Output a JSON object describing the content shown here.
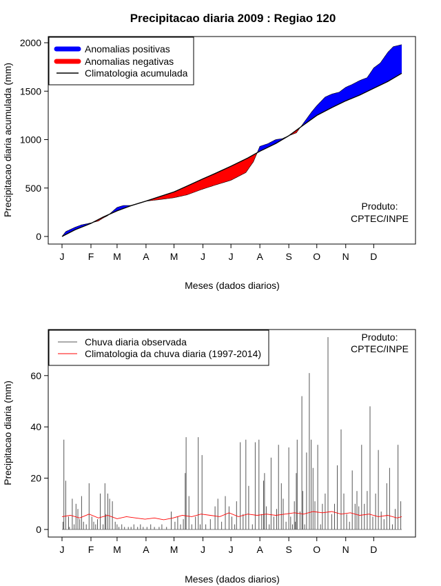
{
  "colors": {
    "positive": "#0000FF",
    "negative": "#FF0000",
    "climatology": "#000000",
    "observed": "#555555",
    "clim_daily": "#FF0000"
  },
  "chart_data": [
    {
      "type": "area",
      "title": "Precipitacao diaria 2009 : Regiao 120",
      "xlabel": "Meses (dados diarios)",
      "ylabel": "Precipitacao diaria acumulada (mm)",
      "ylim": [
        0,
        2000
      ],
      "yticks": [
        0,
        500,
        1000,
        1500,
        2000
      ],
      "xlim": [
        1,
        365
      ],
      "month_labels": [
        "J",
        "F",
        "M",
        "A",
        "M",
        "J",
        "J",
        "A",
        "S",
        "O",
        "N",
        "D"
      ],
      "month_days": [
        1,
        32,
        60,
        91,
        121,
        152,
        182,
        213,
        244,
        274,
        305,
        335
      ],
      "legend": [
        "Anomalias positivas",
        "Anomalias negativas",
        "Climatologia acumulada"
      ],
      "legend_position": "top-left",
      "note": [
        "Produto:",
        "CPTEC/INPE"
      ],
      "series": [
        {
          "name": "Climatologia acumulada",
          "x": [
            1,
            15,
            32,
            45,
            60,
            75,
            91,
            105,
            121,
            135,
            152,
            165,
            182,
            200,
            213,
            230,
            244,
            259,
            274,
            290,
            305,
            320,
            335,
            350,
            365
          ],
          "values": [
            0,
            70,
            135,
            200,
            265,
            318,
            365,
            410,
            460,
            520,
            595,
            650,
            725,
            810,
            880,
            960,
            1040,
            1145,
            1250,
            1330,
            1400,
            1460,
            1530,
            1600,
            1685
          ]
        },
        {
          "name": "Observada acumulada",
          "x": [
            1,
            5,
            15,
            22,
            32,
            40,
            45,
            50,
            60,
            67,
            75,
            85,
            91,
            105,
            121,
            135,
            152,
            165,
            182,
            198,
            206,
            213,
            222,
            230,
            237,
            244,
            252,
            259,
            268,
            274,
            283,
            290,
            298,
            305,
            312,
            320,
            328,
            335,
            342,
            350,
            356,
            365
          ],
          "values": [
            0,
            50,
            95,
            120,
            140,
            160,
            190,
            215,
            300,
            320,
            320,
            350,
            365,
            380,
            400,
            430,
            490,
            530,
            580,
            660,
            770,
            930,
            960,
            1000,
            1010,
            1040,
            1070,
            1160,
            1280,
            1350,
            1440,
            1470,
            1490,
            1540,
            1570,
            1610,
            1640,
            1740,
            1790,
            1900,
            1960,
            1980
          ]
        }
      ]
    },
    {
      "type": "line",
      "xlabel": "Meses (dados diarios)",
      "ylabel": "Precipitacao diaria (mm)",
      "ylim": [
        0,
        75
      ],
      "yticks": [
        0,
        20,
        40,
        60
      ],
      "xlim": [
        1,
        365
      ],
      "month_labels": [
        "J",
        "F",
        "M",
        "A",
        "M",
        "J",
        "J",
        "A",
        "S",
        "O",
        "N",
        "D"
      ],
      "month_days": [
        1,
        32,
        60,
        91,
        121,
        152,
        182,
        213,
        244,
        274,
        305,
        335
      ],
      "legend": [
        "Chuva diaria observada",
        "Climatologia da chuva diaria (1997-2014)"
      ],
      "legend_position": "top-left",
      "note": [
        "Produto:",
        "CPTEC/INPE"
      ],
      "series": [
        {
          "name": "Chuva diaria observada",
          "x": [
            2,
            3,
            5,
            8,
            9,
            12,
            14,
            16,
            18,
            20,
            22,
            24,
            27,
            30,
            33,
            35,
            37,
            39,
            42,
            45,
            47,
            48,
            50,
            52,
            55,
            58,
            60,
            62,
            65,
            68,
            72,
            75,
            78,
            82,
            85,
            88,
            92,
            96,
            100,
            105,
            108,
            113,
            118,
            122,
            125,
            128,
            131,
            133,
            134,
            137,
            140,
            144,
            147,
            149,
            151,
            155,
            160,
            165,
            168,
            172,
            176,
            180,
            183,
            186,
            188,
            192,
            195,
            198,
            201,
            205,
            208,
            212,
            215,
            217,
            218,
            220,
            223,
            225,
            228,
            231,
            233,
            236,
            238,
            241,
            244,
            246,
            248,
            250,
            251,
            252,
            253,
            256,
            258,
            259,
            261,
            263,
            266,
            268,
            270,
            272,
            275,
            278,
            280,
            283,
            286,
            290,
            293,
            296,
            300,
            303,
            306,
            309,
            312,
            315,
            317,
            319,
            322,
            325,
            328,
            331,
            334,
            337,
            340,
            343,
            346,
            349,
            352,
            355,
            358,
            361,
            364
          ],
          "values": [
            3,
            35,
            19,
            5,
            1,
            12,
            2,
            10,
            8,
            4,
            13,
            3,
            2,
            18,
            5,
            3,
            2,
            4,
            14,
            2,
            18,
            6,
            14,
            12,
            11,
            3,
            2,
            1,
            2,
            1,
            1,
            1,
            2,
            1,
            2,
            1,
            1,
            2,
            1,
            1,
            2,
            1,
            7,
            3,
            5,
            2,
            4,
            22,
            36,
            13,
            2,
            5,
            36,
            2,
            29,
            2,
            4,
            9,
            12,
            3,
            13,
            9,
            5,
            2,
            11,
            34,
            6,
            35,
            17,
            2,
            34,
            35,
            6,
            19,
            22,
            9,
            2,
            28,
            5,
            8,
            33,
            18,
            12,
            3,
            32,
            5,
            2,
            11,
            3,
            22,
            35,
            7,
            52,
            15,
            2,
            30,
            61,
            35,
            24,
            11,
            33,
            2,
            10,
            14,
            75,
            6,
            10,
            25,
            39,
            14,
            6,
            3,
            23,
            10,
            15,
            9,
            33,
            10,
            15,
            48,
            5,
            14,
            31,
            7,
            4,
            18,
            24,
            2,
            8,
            33,
            11
          ]
        },
        {
          "name": "Climatologia da chuva diaria (1997-2014)",
          "x": [
            1,
            10,
            20,
            30,
            40,
            50,
            60,
            70,
            80,
            90,
            100,
            110,
            120,
            130,
            140,
            150,
            160,
            170,
            180,
            190,
            200,
            210,
            220,
            230,
            240,
            250,
            260,
            270,
            280,
            290,
            300,
            310,
            320,
            330,
            340,
            350,
            360,
            365
          ],
          "values": [
            5,
            5.5,
            4.5,
            6,
            4.5,
            5.5,
            4.2,
            5,
            4.5,
            4,
            4.5,
            3.8,
            4.5,
            5.5,
            5,
            6,
            5.5,
            5,
            6.5,
            5,
            6,
            5.5,
            6,
            5.5,
            6,
            6.5,
            6,
            7,
            6.5,
            7,
            6,
            6.5,
            5.5,
            6,
            5,
            5.5,
            4.5,
            5
          ]
        }
      ]
    }
  ]
}
